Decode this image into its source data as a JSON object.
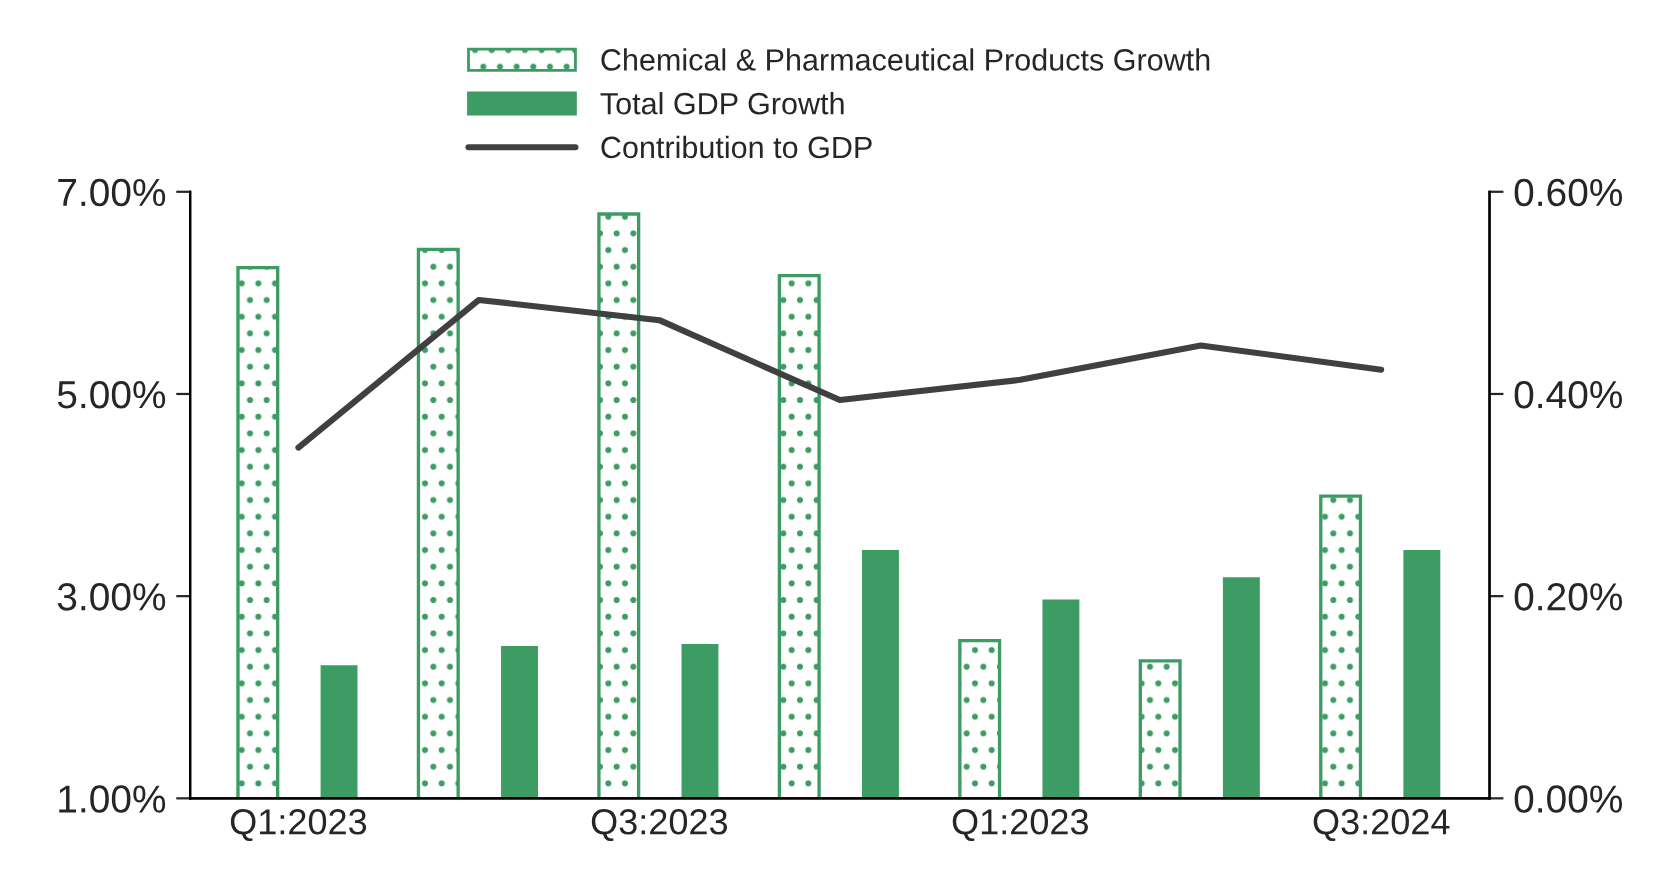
{
  "chart_data": {
    "type": "bar",
    "categories": [
      "Q1:2023",
      null,
      "Q3:2023",
      null,
      "Q1:2023",
      null,
      "Q3:2024"
    ],
    "series": [
      {
        "name": "Chemical & Pharmaceutical Products Growth",
        "color": "#3d9c63",
        "values": [
          6.25,
          6.43,
          6.78,
          6.17,
          2.56,
          2.36,
          3.99
        ]
      },
      {
        "name": "Total GDP Growth",
        "color": "#3d9c63",
        "values": [
          2.33,
          2.52,
          2.54,
          3.47,
          2.98,
          3.2,
          3.47
        ]
      },
      {
        "name": "Contribution to GDP",
        "type": "line",
        "axis": "y2",
        "color": "#404040",
        "values": [
          0.347,
          0.493,
          0.473,
          0.394,
          0.414,
          0.448,
          0.424
        ]
      }
    ],
    "ylim": [
      1,
      7
    ],
    "yticks": [
      {
        "value": 1,
        "label": "1.00%"
      },
      {
        "value": 3,
        "label": "3.00%"
      },
      {
        "value": 5,
        "label": "5.00%"
      },
      {
        "value": 7,
        "label": "7.00%"
      }
    ],
    "y2lim": [
      0,
      0.6
    ],
    "y2ticks": [
      {
        "value": 0,
        "label": "0.00%"
      },
      {
        "value": 0.2,
        "label": "0.20%"
      },
      {
        "value": 0.4,
        "label": "0.40%"
      },
      {
        "value": 0.6,
        "label": "0.60%"
      }
    ],
    "grid": false,
    "legend": "top",
    "marker": "none",
    "line_style": "solid"
  }
}
